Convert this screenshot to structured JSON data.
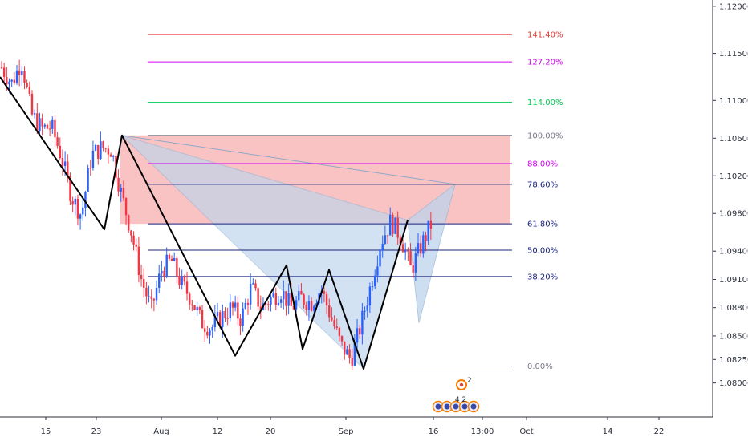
{
  "chart_data": {
    "type": "candlestick",
    "x_tick_labels": [
      "15",
      "23",
      "Aug",
      "12",
      "20",
      "Sep",
      "16",
      "13:00",
      "Oct",
      "14",
      "22"
    ],
    "y_tick_labels": [
      "1.12000",
      "1.11500",
      "1.11000",
      "1.10600",
      "1.10200",
      "1.09800",
      "1.09400",
      "1.09100",
      "1.08800",
      "1.08500",
      "1.08250",
      "1.08000"
    ],
    "ylim": [
      1.0775,
      1.1205
    ],
    "fib_levels": [
      {
        "label": "141.40%",
        "price": 1.117,
        "color": "#e53935"
      },
      {
        "label": "127.20%",
        "price": 1.1141,
        "color": "#d500f9"
      },
      {
        "label": "114.00%",
        "price": 1.1098,
        "color": "#00c853"
      },
      {
        "label": "100.00%",
        "price": 1.1063,
        "color": "#787b86"
      },
      {
        "label": "88.00%",
        "price": 1.1033,
        "color": "#d500f9"
      },
      {
        "label": "78.60%",
        "price": 1.1011,
        "color": "#1a237e"
      },
      {
        "label": "61.80%",
        "price": 1.0969,
        "color": "#1a237e"
      },
      {
        "label": "50.00%",
        "price": 1.0941,
        "color": "#1a237e"
      },
      {
        "label": "38.20%",
        "price": 1.0913,
        "color": "#1a237e"
      },
      {
        "label": "0.00%",
        "price": 1.0818,
        "color": "#787b86"
      }
    ],
    "zigzag_price": [
      1.1125,
      1.0963,
      1.1063,
      1.0829,
      1.0925,
      1.0836,
      1.092,
      1.0815,
      1.0973
    ],
    "harmonic_triangle_1": [
      1.1063,
      1.0815,
      1.0973
    ],
    "harmonic_triangle_2": [
      1.0973,
      1.1011,
      1.0864
    ],
    "candles_anchor_price": [
      1.1135,
      1.1118,
      1.1142,
      1.1085,
      1.107,
      1.1072,
      1.104,
      1.0998,
      1.0978,
      1.1042,
      1.105,
      1.1048,
      1.1,
      1.096,
      1.091,
      1.0878,
      1.092,
      1.093,
      1.0905,
      1.089,
      1.0865,
      1.0858,
      1.087,
      1.088,
      1.0868,
      1.0902,
      1.088,
      1.089,
      1.0898,
      1.088,
      1.089,
      1.0885,
      1.09,
      1.087,
      1.084,
      1.0825,
      1.0862,
      1.0905,
      1.095,
      1.0972,
      1.0955,
      1.092,
      1.0945,
      1.0968
    ],
    "markers": {
      "top_badge": "2",
      "bottom_badges": "4 2"
    },
    "colors": {
      "up": "#2962ff",
      "down": "#f23645",
      "zone_fill": "#f8bcbc",
      "triangle_fill": "#bcd4ec",
      "zigzag": "#000000",
      "axis_text": "#2a2e39"
    }
  }
}
